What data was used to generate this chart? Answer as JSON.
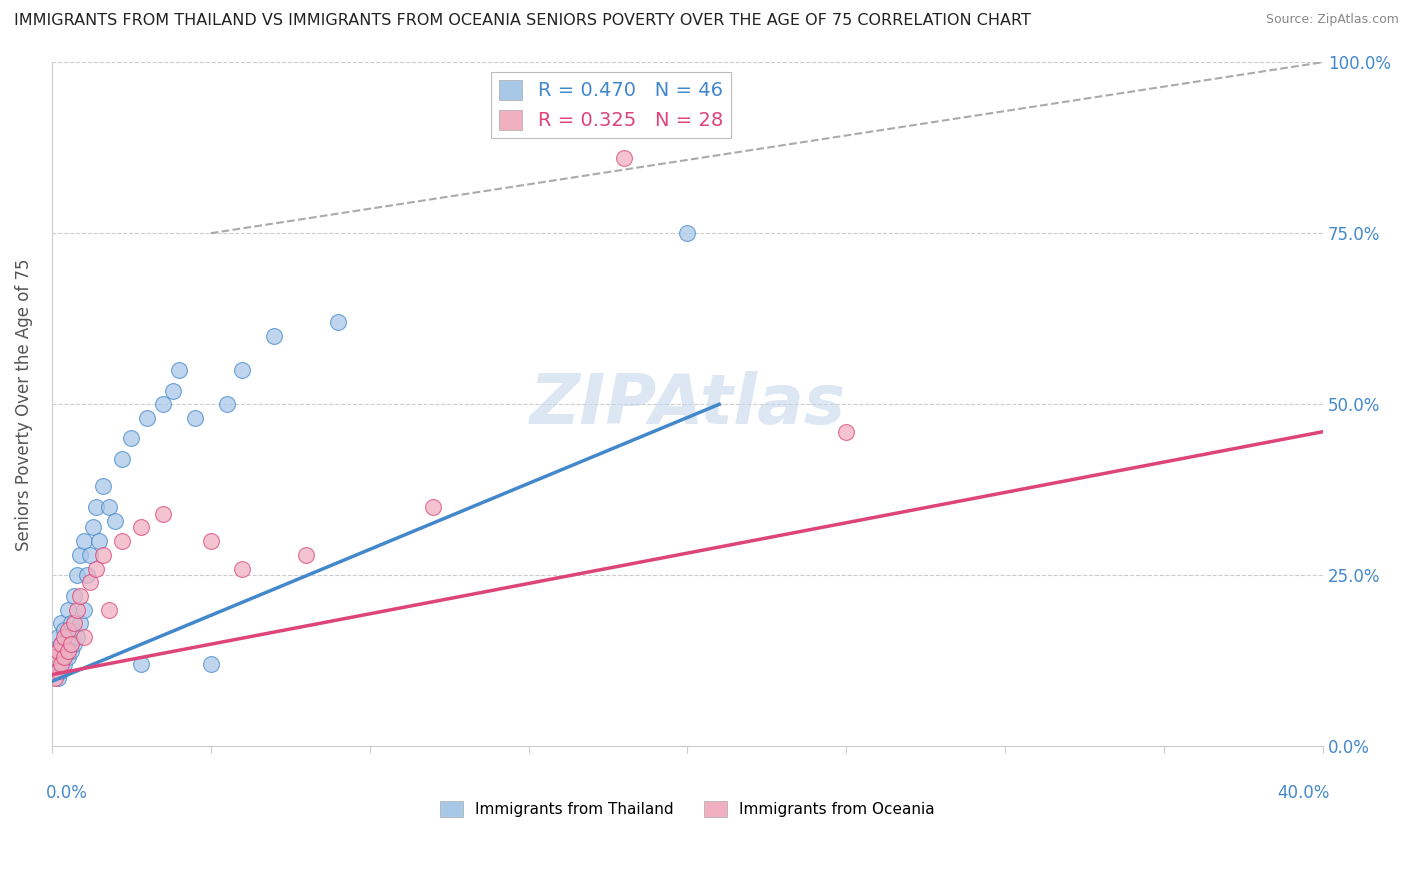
{
  "title": "IMMIGRANTS FROM THAILAND VS IMMIGRANTS FROM OCEANIA SENIORS POVERTY OVER THE AGE OF 75 CORRELATION CHART",
  "source": "Source: ZipAtlas.com",
  "ylabel": "Seniors Poverty Over the Age of 75",
  "xlim": [
    0.0,
    0.4
  ],
  "ylim": [
    0.0,
    1.0
  ],
  "R_thailand": 0.47,
  "N_thailand": 46,
  "R_oceania": 0.325,
  "N_oceania": 28,
  "color_thailand": "#a8c8e8",
  "color_thailand_line": "#4488cc",
  "color_oceania": "#f0b0c0",
  "color_oceania_line": "#dd4477",
  "color_ref_line": "#aaaaaa",
  "thailand_x": [
    0.001,
    0.001,
    0.002,
    0.002,
    0.002,
    0.003,
    0.003,
    0.003,
    0.004,
    0.004,
    0.004,
    0.005,
    0.005,
    0.005,
    0.006,
    0.006,
    0.007,
    0.007,
    0.008,
    0.008,
    0.009,
    0.009,
    0.01,
    0.01,
    0.011,
    0.012,
    0.013,
    0.014,
    0.015,
    0.016,
    0.018,
    0.02,
    0.022,
    0.025,
    0.028,
    0.03,
    0.035,
    0.038,
    0.04,
    0.045,
    0.05,
    0.055,
    0.06,
    0.07,
    0.09,
    0.2
  ],
  "thailand_y": [
    0.12,
    0.14,
    0.1,
    0.13,
    0.16,
    0.11,
    0.15,
    0.18,
    0.12,
    0.14,
    0.17,
    0.13,
    0.16,
    0.2,
    0.14,
    0.18,
    0.15,
    0.22,
    0.16,
    0.25,
    0.18,
    0.28,
    0.2,
    0.3,
    0.25,
    0.28,
    0.32,
    0.35,
    0.3,
    0.38,
    0.35,
    0.33,
    0.42,
    0.45,
    0.12,
    0.48,
    0.5,
    0.52,
    0.55,
    0.48,
    0.12,
    0.5,
    0.55,
    0.6,
    0.62,
    0.75
  ],
  "oceania_x": [
    0.001,
    0.001,
    0.002,
    0.002,
    0.003,
    0.003,
    0.004,
    0.004,
    0.005,
    0.005,
    0.006,
    0.007,
    0.008,
    0.009,
    0.01,
    0.012,
    0.014,
    0.016,
    0.018,
    0.022,
    0.028,
    0.035,
    0.05,
    0.06,
    0.08,
    0.12,
    0.18,
    0.25
  ],
  "oceania_y": [
    0.1,
    0.13,
    0.11,
    0.14,
    0.12,
    0.15,
    0.13,
    0.16,
    0.14,
    0.17,
    0.15,
    0.18,
    0.2,
    0.22,
    0.16,
    0.24,
    0.26,
    0.28,
    0.2,
    0.3,
    0.32,
    0.34,
    0.3,
    0.26,
    0.28,
    0.35,
    0.86,
    0.46
  ],
  "thailand_line_x0": 0.0,
  "thailand_line_y0": 0.095,
  "thailand_line_x1": 0.21,
  "thailand_line_y1": 0.5,
  "oceania_line_x0": 0.0,
  "oceania_line_y0": 0.105,
  "oceania_line_x1": 0.4,
  "oceania_line_y1": 0.46,
  "ref_line_x0": 0.05,
  "ref_line_y0": 0.75,
  "ref_line_x1": 0.4,
  "ref_line_y1": 1.0,
  "background_color": "#ffffff",
  "grid_color": "#cccccc"
}
